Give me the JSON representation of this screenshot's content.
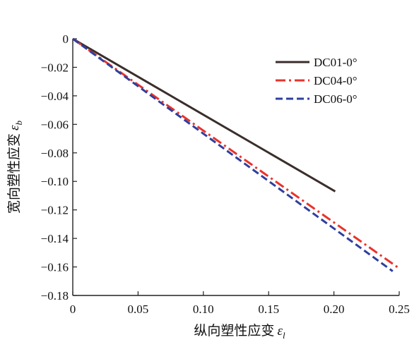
{
  "chart_data": {
    "type": "line",
    "xlabel_text": "纵向塑性应变",
    "xlabel_symbol": "ε",
    "xlabel_sub": "l",
    "ylabel_text": "宽向塑性应变",
    "ylabel_symbol": "ε",
    "ylabel_sub": "b",
    "xlim": [
      0,
      0.25
    ],
    "ylim": [
      -0.18,
      0
    ],
    "x_ticks": [
      0,
      0.05,
      0.1,
      0.15,
      0.2,
      0.25
    ],
    "x_tick_labels": [
      "0",
      "0.05",
      "0.10",
      "0.15",
      "0.20",
      "0.25"
    ],
    "y_ticks": [
      0,
      -0.02,
      -0.04,
      -0.06,
      -0.08,
      -0.1,
      -0.12,
      -0.14,
      -0.16,
      -0.18
    ],
    "y_tick_labels": [
      "0",
      "−0.02",
      "−0.04",
      "−0.06",
      "−0.08",
      "−0.10",
      "−0.12",
      "−0.14",
      "−0.16",
      "−0.18"
    ],
    "grid": false,
    "legend_position": "top-right",
    "series": [
      {
        "name": "DC01-0°",
        "color": "#3a2e2b",
        "dash": "solid",
        "x": [
          0,
          0.201
        ],
        "y": [
          0,
          -0.107
        ]
      },
      {
        "name": "DC04-0°",
        "color": "#e8332b",
        "dash": "dashdot",
        "x": [
          0,
          0.25
        ],
        "y": [
          0,
          -0.161
        ]
      },
      {
        "name": "DC06-0°",
        "color": "#2f3f9e",
        "dash": "dashed",
        "x": [
          0,
          0.245
        ],
        "y": [
          0,
          -0.163
        ]
      }
    ]
  }
}
